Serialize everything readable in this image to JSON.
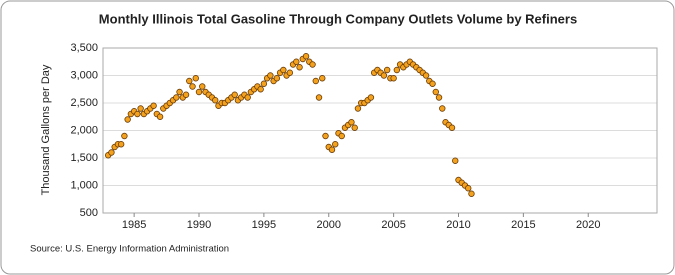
{
  "chart_data": {
    "type": "scatter",
    "title": "Monthly Illinois Total Gasoline Through Company Outlets Volume by Refiners",
    "y_label": "Thousand Gallons per Day",
    "source": "Source: U.S. Energy Information Administration",
    "xlim": [
      1982.6,
      2025.3
    ],
    "xticks": [
      1985,
      1990,
      1995,
      2000,
      2005,
      2010,
      2015,
      2020
    ],
    "ylim": [
      500,
      3500
    ],
    "yticks": [
      500,
      {
        "value": 1000,
        "label": "1,000"
      },
      {
        "value": 1500,
        "label": "1,500"
      },
      {
        "value": 2000,
        "label": "2,000"
      },
      {
        "value": 2500,
        "label": "2,500"
      },
      {
        "value": 3000,
        "label": "3,000"
      },
      {
        "value": 3500,
        "label": "3,500"
      }
    ],
    "grid": true,
    "series": [
      {
        "color": "#f4a21e",
        "x": [
          1983,
          1983.25,
          1983.5,
          1983.75,
          1984,
          1984.25,
          1984.5,
          1984.75,
          1985,
          1985.25,
          1985.5,
          1985.75,
          1986,
          1986.25,
          1986.5,
          1986.75,
          1987,
          1987.25,
          1987.5,
          1987.75,
          1988,
          1988.25,
          1988.5,
          1988.75,
          1989,
          1989.25,
          1989.5,
          1989.75,
          1990,
          1990.25,
          1990.5,
          1990.75,
          1991,
          1991.25,
          1991.5,
          1991.75,
          1992,
          1992.25,
          1992.5,
          1992.75,
          1993,
          1993.25,
          1993.5,
          1993.75,
          1994,
          1994.25,
          1994.5,
          1994.75,
          1995,
          1995.25,
          1995.5,
          1995.75,
          1996,
          1996.25,
          1996.5,
          1996.75,
          1997,
          1997.25,
          1997.5,
          1997.75,
          1998,
          1998.25,
          1998.5,
          1998.75,
          1999,
          1999.25,
          1999.5,
          1999.75,
          2000,
          2000.25,
          2000.5,
          2000.75,
          2001,
          2001.25,
          2001.5,
          2001.75,
          2002,
          2002.25,
          2002.5,
          2002.75,
          2003,
          2003.25,
          2003.5,
          2003.75,
          2004,
          2004.25,
          2004.5,
          2004.75,
          2005,
          2005.25,
          2005.5,
          2005.75,
          2006,
          2006.25,
          2006.5,
          2006.75,
          2007,
          2007.25,
          2007.5,
          2007.75,
          2008,
          2008.25,
          2008.5,
          2008.75,
          2009,
          2009.25,
          2009.5,
          2009.75,
          2010,
          2010.25,
          2010.5,
          2010.75,
          2011
        ],
        "values": [
          1550,
          1600,
          1700,
          1750,
          1750,
          1900,
          2200,
          2300,
          2350,
          2300,
          2400,
          2300,
          2350,
          2400,
          2450,
          2300,
          2250,
          2400,
          2450,
          2500,
          2550,
          2600,
          2700,
          2600,
          2650,
          2900,
          2800,
          2950,
          2700,
          2800,
          2700,
          2650,
          2600,
          2550,
          2450,
          2500,
          2500,
          2550,
          2600,
          2650,
          2550,
          2600,
          2650,
          2600,
          2700,
          2750,
          2800,
          2750,
          2850,
          2950,
          3000,
          2900,
          2950,
          3050,
          3100,
          3000,
          3050,
          3200,
          3250,
          3150,
          3300,
          3350,
          3250,
          3200,
          2900,
          2600,
          2950,
          1900,
          1700,
          1650,
          1750,
          1950,
          1900,
          2050,
          2100,
          2150,
          2050,
          2400,
          2500,
          2500,
          2550,
          2600,
          3050,
          3100,
          3050,
          3000,
          3100,
          2950,
          2950,
          3100,
          3200,
          3150,
          3200,
          3250,
          3200,
          3150,
          3100,
          3050,
          3000,
          2900,
          2850,
          2700,
          2600,
          2400,
          2150,
          2100,
          2050,
          1450,
          1100,
          1050,
          1000,
          950,
          850
        ]
      }
    ]
  }
}
